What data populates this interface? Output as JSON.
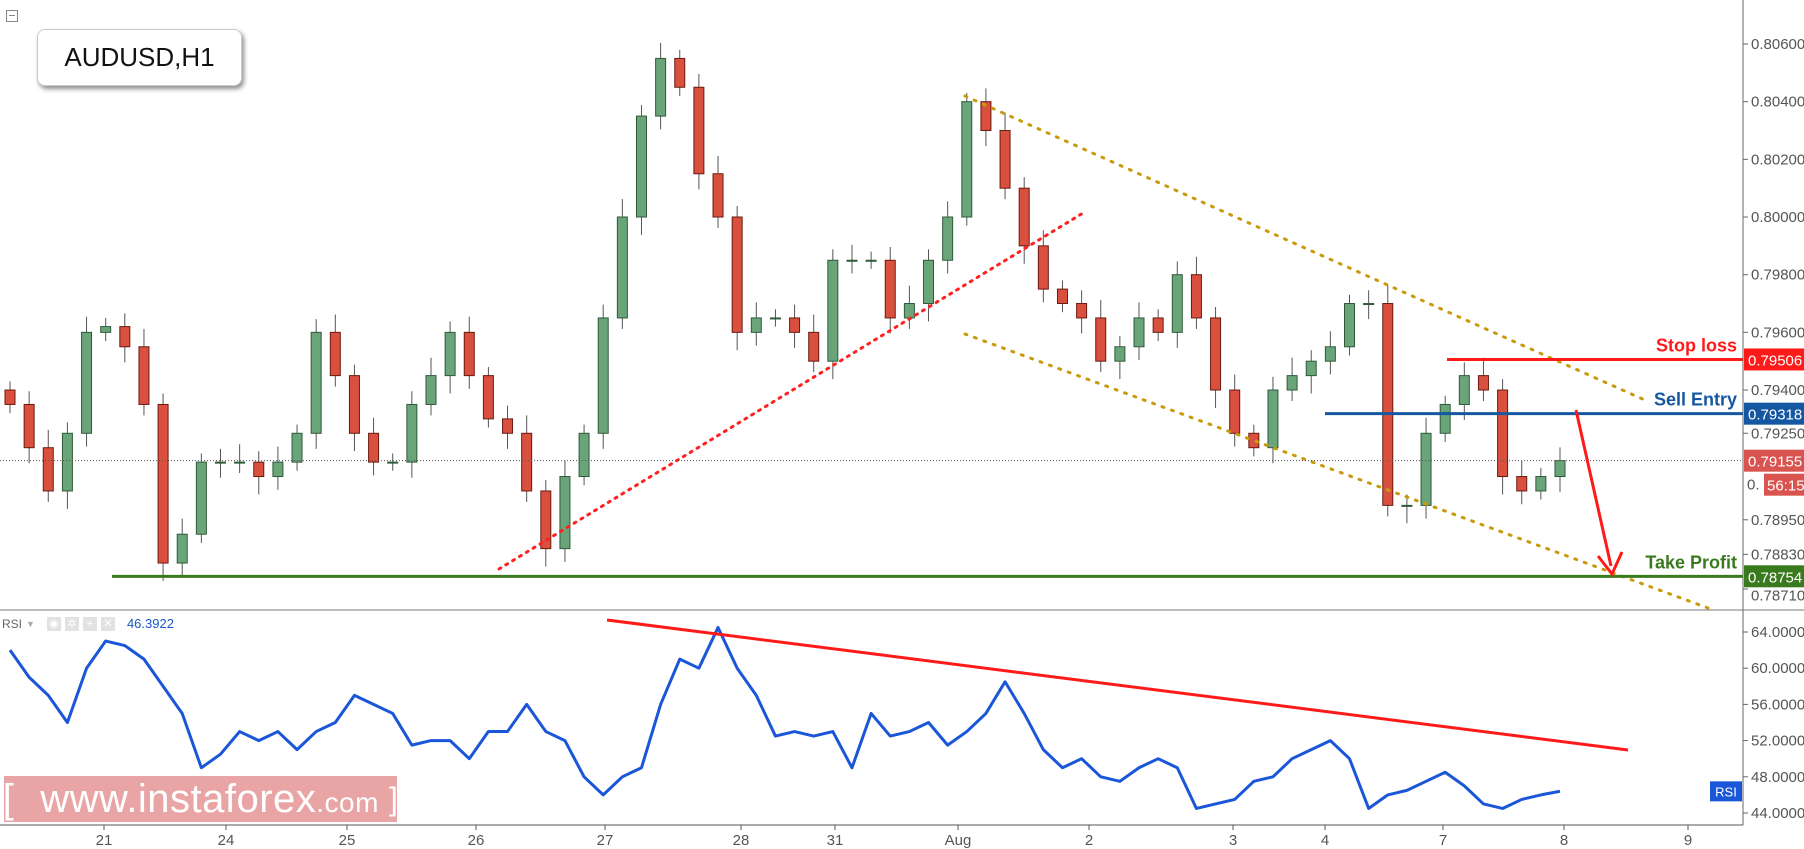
{
  "symbol": "AUDUSD,H1",
  "colors": {
    "up": "#6aa57a",
    "down": "#d9503f",
    "take_profit": "#3a7a1e",
    "stop_loss": "#ff1a1a",
    "sell_entry": "#1557a0",
    "channel": "#c89a0c",
    "rsi_line": "#1a56d8",
    "last_price": "#d9534f"
  },
  "annotations": {
    "stop_loss": {
      "label": "Stop loss",
      "price": "0.79506"
    },
    "sell_entry": {
      "label": "Sell Entry",
      "price": "0.79318"
    },
    "take_profit": {
      "label": "Take Profit",
      "price": "0.78754"
    },
    "last_price": "0.79155",
    "countdown": "56:15",
    "hidden_label": "0."
  },
  "rsi_legend": {
    "name": "RSI",
    "value": "46.3922",
    "axis_tag": "RSI"
  },
  "watermark": {
    "open": "[",
    "main": "www.instaforex",
    "tld": ".com",
    "close": "]"
  },
  "chart_data": [
    {
      "type": "candlestick",
      "title": "AUDUSD,H1",
      "price_ticks": [
        "0.80600",
        "0.80400",
        "0.80200",
        "0.80000",
        "0.79800",
        "0.79600",
        "0.79400",
        "0.79250",
        "0.78950",
        "0.78830",
        "0.78710"
      ],
      "ylim": [
        0.7871,
        0.806
      ],
      "x_ticks": [
        "21",
        "24",
        "25",
        "26",
        "27",
        "28",
        "31",
        "Aug",
        "2",
        "3",
        "4",
        "7",
        "8",
        "9"
      ],
      "closes": [
        0.7935,
        0.792,
        0.7905,
        0.7925,
        0.796,
        0.7962,
        0.7955,
        0.7935,
        0.788,
        0.789,
        0.7915,
        0.7915,
        0.7915,
        0.791,
        0.7915,
        0.7925,
        0.796,
        0.7945,
        0.7925,
        0.7915,
        0.7915,
        0.7935,
        0.7945,
        0.796,
        0.7945,
        0.793,
        0.7925,
        0.7905,
        0.7885,
        0.791,
        0.7925,
        0.7965,
        0.8,
        0.8035,
        0.8055,
        0.8045,
        0.8015,
        0.8,
        0.796,
        0.7965,
        0.7965,
        0.796,
        0.795,
        0.7985,
        0.7985,
        0.7985,
        0.7965,
        0.797,
        0.7985,
        0.8,
        0.804,
        0.803,
        0.801,
        0.799,
        0.7975,
        0.797,
        0.7965,
        0.795,
        0.7955,
        0.7965,
        0.796,
        0.798,
        0.7965,
        0.794,
        0.7925,
        0.792,
        0.794,
        0.7945,
        0.795,
        0.7955,
        0.797,
        0.797,
        0.79,
        0.79,
        0.7925,
        0.7935,
        0.7945,
        0.794,
        0.791,
        0.7905,
        0.791,
        0.79155
      ]
    },
    {
      "type": "line",
      "title": "RSI",
      "y_ticks": [
        "64.0000",
        "60.0000",
        "56.0000",
        "52.0000",
        "48.0000",
        "44.0000"
      ],
      "ylim": [
        44,
        64
      ],
      "values": [
        62,
        59,
        57,
        54,
        60,
        63,
        62.5,
        61,
        58,
        55,
        49,
        50.5,
        53,
        52,
        53,
        51,
        53,
        54,
        57,
        56,
        55,
        51.5,
        52,
        52,
        50,
        53,
        53,
        56,
        53,
        52,
        48,
        46,
        48,
        49,
        56,
        61,
        60,
        64.5,
        60,
        57,
        52.5,
        53,
        52.5,
        53,
        49,
        55,
        52.5,
        53,
        54,
        51.5,
        53,
        55,
        58.5,
        55,
        51,
        49,
        50,
        48,
        47.5,
        49,
        50,
        49,
        44.5,
        45,
        45.5,
        47.5,
        48,
        50,
        51,
        52,
        50,
        44.5,
        46,
        46.5,
        47.5,
        48.5,
        47,
        45,
        44.5,
        45.5,
        46,
        46.4
      ]
    }
  ]
}
